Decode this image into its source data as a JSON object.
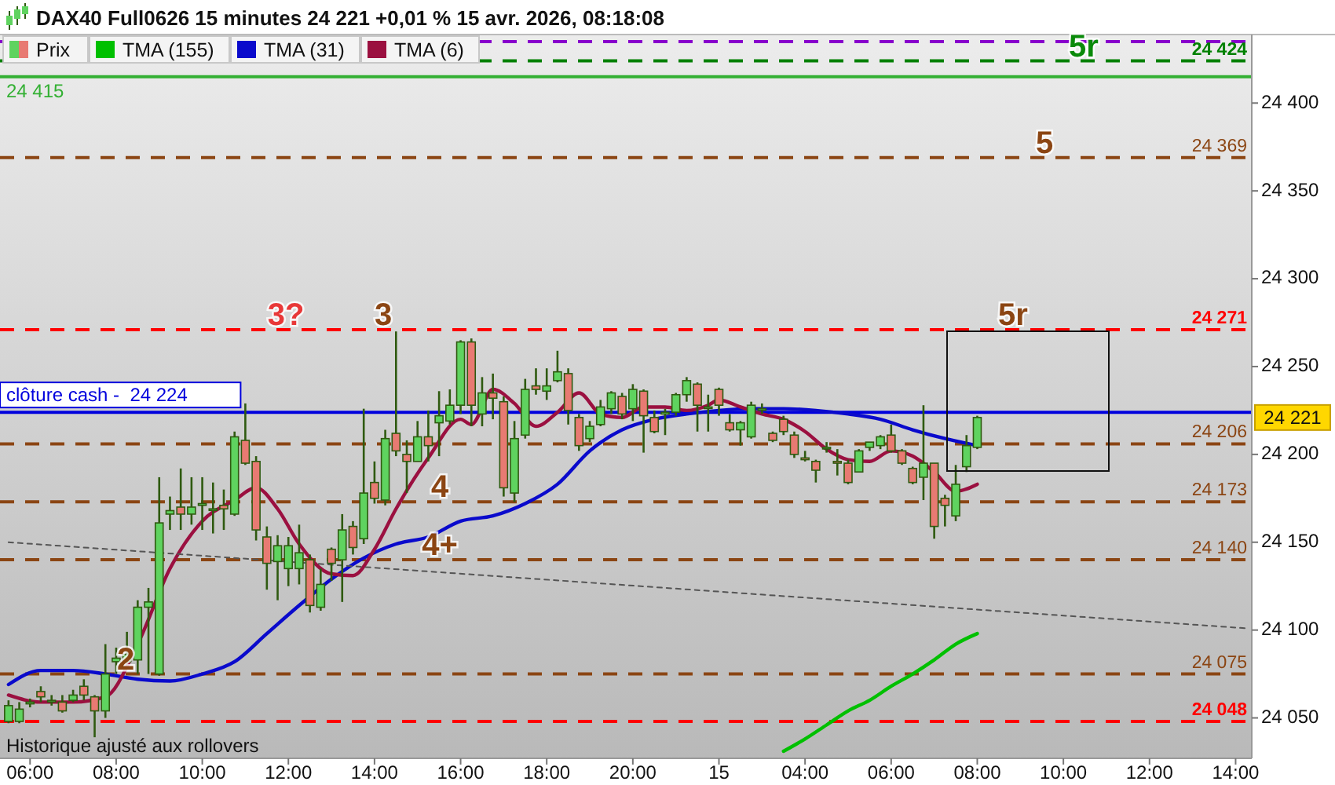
{
  "chart_data": {
    "type": "candlestick",
    "title": "DAX40 Full0626 15 minutes 24 221 +0,01 % 15 avr. 2026, 08:18:08",
    "legend": "top left",
    "categories": [
      null,
      null,
      "06:00",
      null,
      null,
      null,
      null,
      null,
      null,
      null,
      "08:00",
      null,
      null,
      null,
      null,
      null,
      null,
      null,
      "10:00",
      null,
      null,
      null,
      null,
      null,
      null,
      null,
      "12:00",
      null,
      null,
      null,
      null,
      null,
      null,
      null,
      "14:00",
      null,
      null,
      null,
      null,
      null,
      null,
      null,
      "16:00",
      null,
      null,
      null,
      null,
      null,
      null,
      null,
      "18:00",
      null,
      null,
      null,
      null,
      null,
      null,
      null,
      "20:00",
      null,
      null,
      null,
      null,
      null,
      null,
      null,
      "15",
      null,
      null,
      null,
      null,
      null,
      null,
      null,
      "04:00",
      null,
      null,
      null,
      null,
      null,
      null,
      null,
      "06:00",
      null,
      null,
      null,
      null,
      null,
      null,
      null,
      "08:00",
      null,
      null,
      null,
      null,
      null,
      null,
      null,
      "10:00",
      null,
      null,
      null,
      null,
      null,
      null,
      null,
      "12:00",
      null,
      null,
      null,
      null,
      null,
      null,
      null,
      "14:00",
      null
    ],
    "ylim": [
      24027,
      24439
    ],
    "yticks": [
      {
        "value": 24050,
        "label": "24 050"
      },
      {
        "value": 24100,
        "label": "24 100"
      },
      {
        "value": 24150,
        "label": "24 150"
      },
      {
        "value": 24200,
        "label": "24 200"
      },
      {
        "value": 24250,
        "label": "24 250"
      },
      {
        "value": 24300,
        "label": "24 300"
      },
      {
        "value": 24350,
        "label": "24 350"
      },
      {
        "value": 24400,
        "label": "24 400"
      }
    ],
    "series": [
      {
        "name": "Prix",
        "type": "candlestick",
        "ohlc": [
          [
            24048,
            24060,
            24047,
            24057
          ],
          [
            24048,
            24059,
            24047,
            24055
          ],
          [
            24058,
            24061,
            24056,
            24059
          ],
          [
            24065,
            24068,
            24059,
            24062
          ],
          [
            24060,
            24063,
            24057,
            24060
          ],
          [
            24059,
            24063,
            24053,
            24054
          ],
          [
            24060,
            24066,
            24059,
            24063
          ],
          [
            24068,
            24072,
            24060,
            24063
          ],
          [
            24062,
            24063,
            24039,
            24054
          ],
          [
            24054,
            24092,
            24050,
            24075
          ],
          [
            24082,
            24090,
            24075,
            24084
          ],
          [
            24082,
            24099,
            24081,
            24086
          ],
          [
            24083,
            24117,
            24075,
            24113
          ],
          [
            24113,
            24124,
            24075,
            24116
          ],
          [
            24075,
            24187,
            24074,
            24161
          ],
          [
            24166,
            24176,
            24157,
            24168
          ],
          [
            24170,
            24192,
            24157,
            24166
          ],
          [
            24166,
            24187,
            24160,
            24170
          ],
          [
            24171,
            24187,
            24157,
            24172
          ],
          [
            24169,
            24184,
            24155,
            24169
          ],
          [
            24171,
            24180,
            24157,
            24169
          ],
          [
            24166,
            24213,
            24165,
            24210
          ],
          [
            24208,
            24229,
            24194,
            24195
          ],
          [
            24196,
            24199,
            24151,
            24157
          ],
          [
            24153,
            24159,
            24123,
            24138
          ],
          [
            24139,
            24154,
            24117,
            24148
          ],
          [
            24135,
            24153,
            24125,
            24148
          ],
          [
            24135,
            24160,
            24126,
            24144
          ],
          [
            24140,
            24143,
            24110,
            24114
          ],
          [
            24113,
            24135,
            24111,
            24126
          ],
          [
            24146,
            24147,
            24128,
            24138
          ],
          [
            24140,
            24166,
            24116,
            24157
          ],
          [
            24159,
            24162,
            24143,
            24147
          ],
          [
            24152,
            24226,
            24149,
            24178
          ],
          [
            24184,
            24196,
            24172,
            24175
          ],
          [
            24174,
            24214,
            24171,
            24209
          ],
          [
            24212,
            24270,
            24199,
            24202
          ],
          [
            24200,
            24208,
            24178,
            24196
          ],
          [
            24196,
            24219,
            24196,
            24210
          ],
          [
            24210,
            24225,
            24196,
            24205
          ],
          [
            24218,
            24236,
            24199,
            24222
          ],
          [
            24219,
            24237,
            24217,
            24228
          ],
          [
            24228,
            24265,
            24223,
            24264
          ],
          [
            24264,
            24266,
            24216,
            24228
          ],
          [
            24223,
            24244,
            24216,
            24235
          ],
          [
            24235,
            24246,
            24220,
            24232
          ],
          [
            24230,
            24233,
            24176,
            24181
          ],
          [
            24178,
            24219,
            24173,
            24209
          ],
          [
            24211,
            24243,
            24209,
            24237
          ],
          [
            24239,
            24249,
            24234,
            24237
          ],
          [
            24236,
            24249,
            24231,
            24239
          ],
          [
            24242,
            24259,
            24241,
            24247
          ],
          [
            24246,
            24249,
            24217,
            24225
          ],
          [
            24221,
            24223,
            24202,
            24205
          ],
          [
            24209,
            24219,
            24207,
            24216
          ],
          [
            24217,
            24231,
            24216,
            24227
          ],
          [
            24226,
            24236,
            24223,
            24235
          ],
          [
            24233,
            24235,
            24220,
            24223
          ],
          [
            24226,
            24240,
            24219,
            24237
          ],
          [
            24236,
            24237,
            24201,
            24222
          ],
          [
            24221,
            24225,
            24212,
            24213
          ],
          [
            24223,
            24226,
            24211,
            24224
          ],
          [
            24224,
            24235,
            24222,
            24234
          ],
          [
            24234,
            24244,
            24230,
            24242
          ],
          [
            24240,
            24241,
            24213,
            24228
          ],
          [
            24227,
            24234,
            24213,
            24227
          ],
          [
            24237,
            24238,
            24222,
            24228
          ],
          [
            24218,
            24223,
            24213,
            24214
          ],
          [
            24214,
            24219,
            24205,
            24218
          ],
          [
            24210,
            24230,
            24209,
            24228
          ],
          [
            24226,
            24229,
            24223,
            24226
          ],
          [
            24212,
            24213,
            24207,
            24208
          ],
          [
            24220,
            24222,
            24211,
            24213
          ],
          [
            24211,
            24213,
            24198,
            24200
          ],
          [
            24198,
            24202,
            24196,
            24197
          ],
          [
            24196,
            24197,
            24184,
            24191
          ],
          [
            24204,
            24207,
            24201,
            24204
          ],
          [
            24196,
            24203,
            24188,
            24195
          ],
          [
            24195,
            24197,
            24183,
            24184
          ],
          [
            24190,
            24203,
            24190,
            24202
          ],
          [
            24204,
            24207,
            24202,
            24207
          ],
          [
            24205,
            24211,
            24203,
            24210
          ],
          [
            24211,
            24217,
            24201,
            24202
          ],
          [
            24202,
            24203,
            24194,
            24195
          ],
          [
            24192,
            24193,
            24183,
            24184
          ],
          [
            24187,
            24228,
            24174,
            24195
          ],
          [
            24195,
            24195,
            24152,
            24159
          ],
          [
            24175,
            24177,
            24159,
            24171
          ],
          [
            24165,
            24194,
            24162,
            24183
          ],
          [
            24193,
            24211,
            24190,
            24205
          ],
          [
            24204,
            24222,
            24203,
            24221
          ],
          null,
          null,
          null,
          null,
          null,
          null,
          null,
          null,
          null,
          null,
          null,
          null,
          null,
          null,
          null,
          null,
          null,
          null,
          null,
          null,
          null,
          null,
          null,
          null,
          null
        ],
        "colors": [
          "#5fd35f",
          "#5fd35f",
          "#5fd35f",
          "#e87a72",
          "#5fd35f",
          "#e87a72",
          "#5fd35f",
          "#e87a72",
          "#e87a72",
          "#5fd35f",
          "#5fd35f",
          "#5fd35f",
          "#5fd35f",
          "#5fd35f",
          "#5fd35f",
          "#5fd35f",
          "#e87a72",
          "#5fd35f",
          "#5fd35f",
          "#5fd35f",
          "#e87a72",
          "#5fd35f",
          "#e87a72",
          "#e87a72",
          "#e87a72",
          "#5fd35f",
          "#5fd35f",
          "#5fd35f",
          "#e87a72",
          "#5fd35f",
          "#e87a72",
          "#5fd35f",
          "#e87a72",
          "#5fd35f",
          "#e87a72",
          "#5fd35f",
          "#e87a72",
          "#e87a72",
          "#5fd35f",
          "#e87a72",
          "#5fd35f",
          "#5fd35f",
          "#5fd35f",
          "#e87a72",
          "#5fd35f",
          "#e87a72",
          "#e87a72",
          "#5fd35f",
          "#5fd35f",
          "#e87a72",
          "#5fd35f",
          "#5fd35f",
          "#e87a72",
          "#e87a72",
          "#5fd35f",
          "#5fd35f",
          "#5fd35f",
          "#e87a72",
          "#5fd35f",
          "#e87a72",
          "#e87a72",
          "#5fd35f",
          "#5fd35f",
          "#5fd35f",
          "#e87a72",
          "#5fd35f",
          "#e87a72",
          "#e87a72",
          "#5fd35f",
          "#5fd35f",
          "#5fd35f",
          "#e87a72",
          "#e87a72",
          "#e87a72",
          "#e87a72",
          "#e87a72",
          "#5fd35f",
          "#e87a72",
          "#e87a72",
          "#5fd35f",
          "#5fd35f",
          "#5fd35f",
          "#e87a72",
          "#e87a72",
          "#e87a72",
          "#5fd35f",
          "#e87a72",
          "#e87a72",
          "#5fd35f",
          "#5fd35f",
          "#5fd35f",
          null,
          null,
          null,
          null,
          null,
          null,
          null,
          null,
          null,
          null,
          null,
          null,
          null,
          null,
          null,
          null,
          null,
          null,
          null,
          null,
          null,
          null,
          null,
          null,
          null
        ]
      },
      {
        "name": "TMA (155)",
        "type": "line",
        "color": "#00c000",
        "values": [
          null,
          null,
          null,
          null,
          null,
          null,
          null,
          null,
          null,
          null,
          null,
          null,
          null,
          null,
          null,
          null,
          null,
          null,
          null,
          null,
          null,
          null,
          null,
          null,
          null,
          null,
          null,
          null,
          null,
          null,
          null,
          null,
          null,
          null,
          null,
          null,
          null,
          null,
          null,
          null,
          null,
          null,
          null,
          null,
          null,
          null,
          null,
          null,
          null,
          null,
          null,
          null,
          null,
          null,
          null,
          null,
          null,
          null,
          null,
          null,
          null,
          null,
          null,
          null,
          null,
          null,
          null,
          null,
          null,
          null,
          null,
          null,
          24031,
          null,
          24038,
          null,
          24046,
          null,
          24054,
          null,
          24060,
          null,
          24068,
          null,
          24075,
          null,
          24083,
          null,
          24092,
          null,
          24098,
          null,
          null,
          null,
          null,
          null,
          null,
          null,
          null,
          null,
          null,
          null,
          null,
          null,
          null,
          null,
          null,
          null,
          null,
          null,
          null,
          null,
          null,
          null,
          null,
          null
        ]
      },
      {
        "name": "TMA (31)",
        "type": "line",
        "color": "#0a0acc",
        "values": [
          24069,
          null,
          null,
          24077,
          null,
          null,
          24077,
          null,
          null,
          24075,
          null,
          null,
          24072,
          null,
          null,
          24071,
          null,
          null,
          24075,
          null,
          null,
          24082,
          null,
          null,
          24098,
          null,
          null,
          24114,
          null,
          null,
          24129,
          null,
          null,
          24141,
          null,
          null,
          24149,
          null,
          null,
          24153,
          null,
          null,
          24162,
          null,
          null,
          24165,
          null,
          null,
          24172,
          null,
          null,
          24183,
          null,
          null,
          24202,
          null,
          null,
          24214,
          null,
          null,
          24220,
          null,
          null,
          24223,
          null,
          null,
          24225,
          null,
          null,
          24226,
          null,
          null,
          24226,
          null,
          null,
          24225,
          null,
          null,
          24223,
          null,
          null,
          24220,
          null,
          null,
          24214,
          null,
          null,
          24209,
          null,
          null,
          24205,
          null,
          null,
          null,
          null,
          null,
          null,
          null,
          null,
          null,
          null,
          null,
          null,
          null,
          null,
          null,
          null,
          null,
          null,
          null,
          null,
          null,
          null,
          null,
          null,
          null
        ]
      },
      {
        "name": "TMA (6)",
        "type": "line",
        "color": "#9b1040",
        "values": [
          24063,
          null,
          null,
          24059,
          null,
          null,
          24059,
          null,
          null,
          24062,
          null,
          null,
          24092,
          null,
          null,
          24135,
          null,
          null,
          24162,
          null,
          null,
          24174,
          null,
          24181,
          null,
          24169,
          null,
          24149,
          null,
          null,
          24132,
          null,
          24131,
          null,
          24146,
          null,
          24169,
          null,
          null,
          24198,
          null,
          null,
          24220,
          24217,
          null,
          24237,
          null,
          24229,
          null,
          24216,
          null,
          24224,
          null,
          24235,
          null,
          24223,
          null,
          24221,
          null,
          24227,
          null,
          24227,
          null,
          24225,
          null,
          24228,
          24231,
          null,
          24227,
          null,
          24223,
          null,
          24220,
          null,
          24213,
          null,
          24203,
          null,
          24197,
          null,
          24196,
          null,
          24202,
          null,
          24199,
          null,
          24190,
          null,
          24179,
          null,
          24183,
          null,
          null,
          null,
          null,
          null,
          null,
          null,
          null,
          null,
          null,
          null,
          null,
          null,
          null,
          null,
          null,
          null,
          null,
          null,
          null,
          null,
          null,
          null,
          null,
          null
        ]
      },
      {
        "type": "line",
        "color": "#555555",
        "line_style": "dotted",
        "values": [
          24150,
          null,
          null,
          null,
          null,
          null,
          null,
          null,
          null,
          null,
          null,
          null,
          null,
          null,
          null,
          null,
          null,
          null,
          null,
          null,
          null,
          null,
          null,
          null,
          null,
          null,
          null,
          null,
          null,
          null,
          null,
          null,
          null,
          null,
          null,
          null,
          null,
          null,
          null,
          null,
          null,
          null,
          null,
          null,
          null,
          null,
          null,
          null,
          null,
          null,
          null,
          null,
          null,
          null,
          null,
          null,
          null,
          null,
          null,
          null,
          null,
          null,
          null,
          null,
          null,
          null,
          null,
          null,
          null,
          null,
          null,
          null,
          null,
          null,
          null,
          null,
          null,
          null,
          null,
          null,
          null,
          null,
          null,
          null,
          null,
          null,
          null,
          null,
          null,
          null,
          null,
          null,
          null,
          null,
          null,
          null,
          null,
          null,
          null,
          null,
          null,
          null,
          null,
          null,
          null,
          null,
          null,
          null,
          null,
          null,
          null,
          null,
          null,
          null,
          null,
          24101
        ]
      }
    ],
    "ref_lines": [
      {
        "axis": "y",
        "value": 24435,
        "color": "#8800cc",
        "line_style": "dashed"
      },
      {
        "axis": "y",
        "value": 24424,
        "label": "24 424",
        "color": "#008000",
        "line_style": "dashed"
      },
      {
        "axis": "y",
        "value": 24415,
        "label": "24 415",
        "color": "#33b033",
        "line_style": "solid"
      },
      {
        "axis": "y",
        "value": 24369,
        "label": "24 369",
        "color": "#8b4513",
        "line_style": "dashed"
      },
      {
        "axis": "y",
        "value": 24271,
        "label": "24 271",
        "color": "#ff0000",
        "line_style": "dashed"
      },
      {
        "axis": "y",
        "value": 24224,
        "label": "clôture cash -  24 224",
        "color": "#0000dd",
        "line_style": "solid"
      },
      {
        "axis": "y",
        "value": 24206,
        "label": "24 206",
        "color": "#8b4513",
        "line_style": "dashed"
      },
      {
        "axis": "y",
        "value": 24173,
        "label": "24 173",
        "color": "#8b4513",
        "line_style": "dashed"
      },
      {
        "axis": "y",
        "value": 24140,
        "label": "24 140",
        "color": "#8b4513",
        "line_style": "dashed"
      },
      {
        "axis": "y",
        "value": 24075,
        "label": "24 075",
        "color": "#8b4513",
        "line_style": "dashed"
      },
      {
        "axis": "y",
        "value": 24048,
        "label": "24 048",
        "color": "#ff0000",
        "line_style": "dashed"
      }
    ],
    "annotations": [
      "Historique ajusté aux rollovers",
      {
        "text": "5r",
        "y": 24424
      },
      {
        "text": "5",
        "y": 24369
      },
      {
        "text": "3?",
        "y": 24271
      },
      {
        "text": "3",
        "y": 24271
      },
      {
        "text": "5r",
        "y": 24271
      },
      {
        "text": "4",
        "y": 24173
      },
      {
        "text": "4+",
        "y": 24140
      },
      {
        "text": "2",
        "y": 24075
      },
      "24 221"
    ]
  }
}
